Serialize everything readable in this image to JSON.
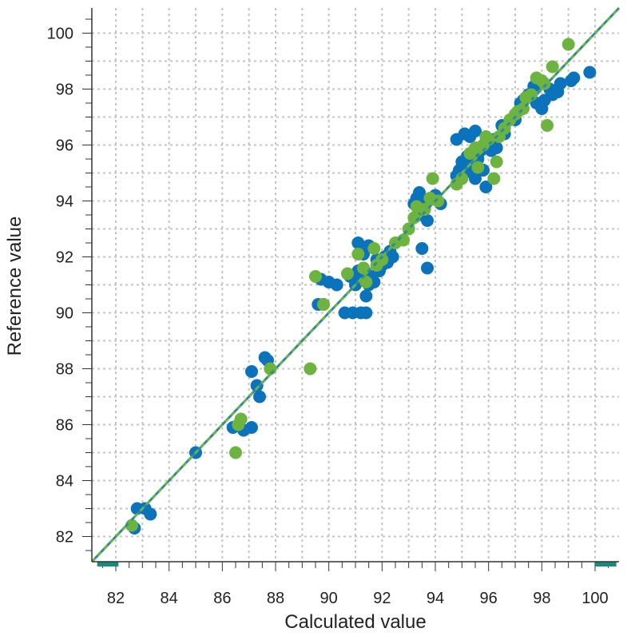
{
  "chart_data": {
    "type": "scatter",
    "title": "",
    "xlabel": "Calculated value",
    "ylabel": "Reference value",
    "xlim": [
      81.1,
      100.9
    ],
    "ylim": [
      81.1,
      100.9
    ],
    "x_ticks": [
      82,
      84,
      86,
      88,
      90,
      92,
      94,
      96,
      98,
      100
    ],
    "y_ticks": [
      82,
      84,
      86,
      88,
      90,
      92,
      94,
      96,
      98,
      100
    ],
    "grid": true,
    "legend": "none",
    "colors": {
      "series_a": "#0b73bb",
      "series_b": "#6db33f",
      "fit_line": "#2e8b9a",
      "grid": "#c4c4c4",
      "axis": "#333333",
      "range_marker": "#1b8a7a"
    },
    "fit_line": {
      "x": [
        81.1,
        100.9
      ],
      "y": [
        81.1,
        100.9
      ]
    },
    "range_markers": [
      [
        81.3,
        82.1
      ],
      [
        100.0,
        100.8
      ]
    ],
    "series": [
      {
        "color": "#0b73bb",
        "points": [
          [
            82.7,
            82.3
          ],
          [
            82.8,
            83.0
          ],
          [
            83.1,
            83.0
          ],
          [
            83.3,
            82.8
          ],
          [
            85.0,
            85.0
          ],
          [
            86.4,
            85.9
          ],
          [
            86.8,
            85.8
          ],
          [
            87.1,
            85.9
          ],
          [
            87.1,
            87.9
          ],
          [
            87.3,
            87.4
          ],
          [
            87.4,
            87.0
          ],
          [
            87.6,
            88.4
          ],
          [
            87.7,
            88.3
          ],
          [
            89.6,
            90.3
          ],
          [
            89.8,
            90.3
          ],
          [
            89.7,
            91.2
          ],
          [
            90.0,
            91.1
          ],
          [
            90.3,
            91.0
          ],
          [
            90.6,
            90.0
          ],
          [
            90.9,
            90.0
          ],
          [
            91.2,
            90.0
          ],
          [
            91.4,
            90.0
          ],
          [
            90.8,
            91.3
          ],
          [
            91.0,
            91.0
          ],
          [
            91.1,
            91.5
          ],
          [
            91.2,
            91.2
          ],
          [
            91.3,
            91.6
          ],
          [
            91.4,
            90.6
          ],
          [
            91.5,
            91.0
          ],
          [
            91.6,
            91.3
          ],
          [
            91.7,
            91.1
          ],
          [
            91.8,
            91.9
          ],
          [
            91.9,
            91.5
          ],
          [
            92.0,
            91.7
          ],
          [
            92.1,
            92.0
          ],
          [
            92.2,
            91.8
          ],
          [
            92.3,
            92.2
          ],
          [
            92.4,
            92.0
          ],
          [
            91.1,
            92.5
          ],
          [
            91.3,
            92.1
          ],
          [
            91.5,
            92.4
          ],
          [
            93.2,
            93.9
          ],
          [
            93.3,
            94.1
          ],
          [
            93.4,
            94.3
          ],
          [
            93.5,
            93.5
          ],
          [
            93.6,
            94.0
          ],
          [
            93.7,
            93.3
          ],
          [
            93.5,
            92.3
          ],
          [
            93.7,
            91.6
          ],
          [
            94.0,
            94.2
          ],
          [
            94.2,
            93.9
          ],
          [
            94.8,
            94.9
          ],
          [
            94.9,
            95.1
          ],
          [
            95.0,
            95.4
          ],
          [
            95.1,
            95.0
          ],
          [
            95.2,
            95.6
          ],
          [
            95.3,
            95.2
          ],
          [
            95.5,
            94.8
          ],
          [
            95.6,
            95.5
          ],
          [
            95.7,
            95.8
          ],
          [
            95.8,
            95.1
          ],
          [
            95.9,
            94.5
          ],
          [
            94.8,
            96.2
          ],
          [
            95.1,
            96.4
          ],
          [
            95.3,
            96.3
          ],
          [
            95.5,
            96.5
          ],
          [
            96.0,
            96.1
          ],
          [
            96.1,
            95.8
          ],
          [
            96.2,
            96.2
          ],
          [
            96.3,
            95.9
          ],
          [
            96.5,
            96.7
          ],
          [
            96.6,
            96.4
          ],
          [
            97.0,
            96.9
          ],
          [
            97.1,
            97.2
          ],
          [
            97.2,
            97.5
          ],
          [
            97.3,
            97.6
          ],
          [
            97.5,
            97.8
          ],
          [
            97.7,
            98.1
          ],
          [
            97.8,
            97.5
          ],
          [
            97.9,
            98.2
          ],
          [
            98.0,
            97.3
          ],
          [
            98.1,
            97.6
          ],
          [
            98.3,
            98.0
          ],
          [
            98.4,
            97.8
          ],
          [
            98.6,
            97.9
          ],
          [
            98.7,
            98.2
          ],
          [
            99.1,
            98.3
          ],
          [
            99.2,
            98.4
          ],
          [
            99.8,
            98.6
          ]
        ]
      },
      {
        "color": "#6db33f",
        "points": [
          [
            82.6,
            82.4
          ],
          [
            86.5,
            85.0
          ],
          [
            86.6,
            86.0
          ],
          [
            86.7,
            86.2
          ],
          [
            87.8,
            88.0
          ],
          [
            89.3,
            88.0
          ],
          [
            89.5,
            91.3
          ],
          [
            89.8,
            90.3
          ],
          [
            90.7,
            91.4
          ],
          [
            91.1,
            92.1
          ],
          [
            91.3,
            91.6
          ],
          [
            91.4,
            91.1
          ],
          [
            91.7,
            92.3
          ],
          [
            91.8,
            91.7
          ],
          [
            92.0,
            91.9
          ],
          [
            92.5,
            92.5
          ],
          [
            92.8,
            92.6
          ],
          [
            93.0,
            93.0
          ],
          [
            93.2,
            93.4
          ],
          [
            93.3,
            93.8
          ],
          [
            93.6,
            93.7
          ],
          [
            93.8,
            94.1
          ],
          [
            93.9,
            94.8
          ],
          [
            94.1,
            94.0
          ],
          [
            94.8,
            94.6
          ],
          [
            95.0,
            94.8
          ],
          [
            95.3,
            95.7
          ],
          [
            95.5,
            95.9
          ],
          [
            95.6,
            95.2
          ],
          [
            95.8,
            96.0
          ],
          [
            95.9,
            96.3
          ],
          [
            96.0,
            96.2
          ],
          [
            96.2,
            94.8
          ],
          [
            96.3,
            95.4
          ],
          [
            96.4,
            96.3
          ],
          [
            96.6,
            96.6
          ],
          [
            96.8,
            96.9
          ],
          [
            97.0,
            97.1
          ],
          [
            97.1,
            97.2
          ],
          [
            97.3,
            97.3
          ],
          [
            97.4,
            97.7
          ],
          [
            97.6,
            97.8
          ],
          [
            97.8,
            98.4
          ],
          [
            98.0,
            98.3
          ],
          [
            98.1,
            98.2
          ],
          [
            98.2,
            96.7
          ],
          [
            98.4,
            98.8
          ],
          [
            99.0,
            99.6
          ]
        ]
      }
    ]
  }
}
